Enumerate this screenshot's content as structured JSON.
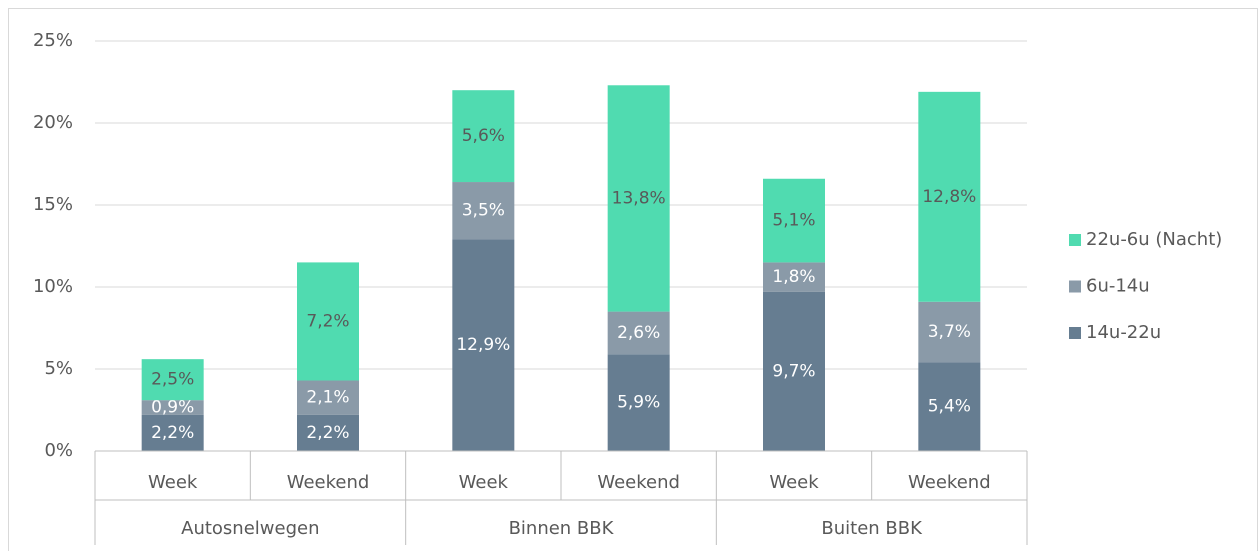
{
  "chart_data": {
    "type": "stacked_bar",
    "categories": [
      "Week",
      "Weekend",
      "Week",
      "Weekend",
      "Week",
      "Weekend"
    ],
    "groups": [
      "Autosnelwegen",
      "Binnen BBK",
      "Buiten BBK"
    ],
    "series": [
      {
        "name": "14u-22u",
        "color": "#667d91",
        "label_color": "#ffffff",
        "values": [
          2.2,
          2.2,
          12.9,
          5.9,
          9.7,
          5.4
        ],
        "value_labels": [
          "2,2%",
          "2,2%",
          "12,9%",
          "5,9%",
          "9,7%",
          "5,4%"
        ]
      },
      {
        "name": "6u-14u",
        "color": "#8a9aa8",
        "label_color": "#ffffff",
        "values": [
          0.9,
          2.1,
          3.5,
          2.6,
          1.8,
          3.7
        ],
        "value_labels": [
          "0,9%",
          "2,1%",
          "3,5%",
          "2,6%",
          "1,8%",
          "3,7%"
        ]
      },
      {
        "name": "22u-6u (Nacht)",
        "color": "#50dbb0",
        "label_color": "#595959",
        "values": [
          2.5,
          7.2,
          5.6,
          13.8,
          5.1,
          12.8
        ],
        "value_labels": [
          "2,5%",
          "7,2%",
          "5,6%",
          "13,8%",
          "5,1%",
          "12,8%"
        ]
      }
    ],
    "ylim": [
      0,
      25
    ],
    "yticks": [
      {
        "value": 0,
        "label": "0%"
      },
      {
        "value": 5,
        "label": "5%"
      },
      {
        "value": 10,
        "label": "10%"
      },
      {
        "value": 15,
        "label": "15%"
      },
      {
        "value": 20,
        "label": "20%"
      },
      {
        "value": 25,
        "label": "25%"
      }
    ],
    "grid": true,
    "legend": "right"
  }
}
